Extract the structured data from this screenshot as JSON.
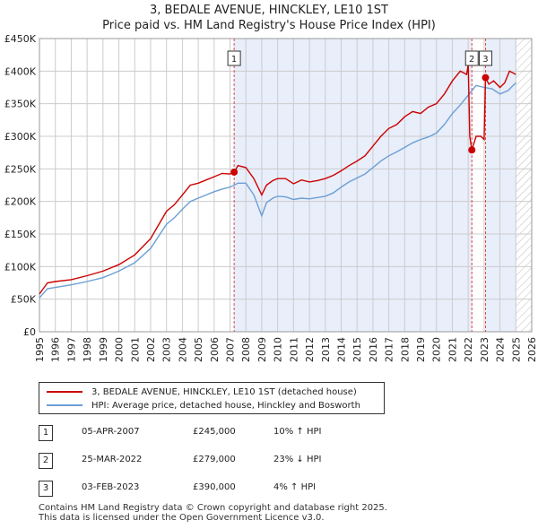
{
  "title": {
    "line1": "3, BEDALE AVENUE, HINCKLEY, LE10 1ST",
    "line2": "Price paid vs. HM Land Registry's House Price Index (HPI)"
  },
  "colors": {
    "price_line": "#cc0000",
    "hpi_line": "#6b9fd4",
    "shade": "#e8eefa",
    "grid": "#cccccc",
    "marker_line": "#dd4444"
  },
  "legend": {
    "price_label": "3, BEDALE AVENUE, HINCKLEY, LE10 1ST (detached house)",
    "hpi_label": "HPI: Average price, detached house, Hinckley and Bosworth"
  },
  "transactions": [
    {
      "num": "1",
      "date": "05-APR-2007",
      "price": "£245,000",
      "hpi": "10% ↑ HPI"
    },
    {
      "num": "2",
      "date": "25-MAR-2022",
      "price": "£279,000",
      "hpi": "23% ↓ HPI"
    },
    {
      "num": "3",
      "date": "03-FEB-2023",
      "price": "£390,000",
      "hpi": "4% ↑ HPI"
    }
  ],
  "footer": {
    "line1": "Contains HM Land Registry data © Crown copyright and database right 2025.",
    "line2": "This data is licensed under the Open Government Licence v3.0."
  },
  "chart_data": {
    "type": "line",
    "title": "Price paid vs. HM Land Registry's House Price Index (HPI)",
    "xlim": [
      1995,
      2026
    ],
    "ylim": [
      0,
      450000
    ],
    "x_ticks": [
      1995,
      1996,
      1997,
      1998,
      1999,
      2000,
      2001,
      2002,
      2003,
      2004,
      2005,
      2006,
      2007,
      2008,
      2009,
      2010,
      2011,
      2012,
      2013,
      2014,
      2015,
      2016,
      2017,
      2018,
      2019,
      2020,
      2021,
      2022,
      2023,
      2024,
      2025,
      2026
    ],
    "y_ticks": [
      0,
      50000,
      100000,
      150000,
      200000,
      250000,
      300000,
      350000,
      400000,
      450000
    ],
    "y_tick_labels": [
      "£0",
      "£50K",
      "£100K",
      "£150K",
      "£200K",
      "£250K",
      "£300K",
      "£350K",
      "£400K",
      "£450K"
    ],
    "shaded_ranges": [
      [
        2007.26,
        2022.23
      ],
      [
        2023.09,
        2025.0
      ]
    ],
    "hatched_range": [
      2025.0,
      2026.0
    ],
    "sale_markers": [
      {
        "label": "1",
        "x": 2007.26,
        "y": 245000
      },
      {
        "label": "2",
        "x": 2022.23,
        "y": 279000
      },
      {
        "label": "3",
        "x": 2023.09,
        "y": 390000
      }
    ],
    "series": [
      {
        "name": "3, BEDALE AVENUE, HINCKLEY, LE10 1ST (detached house)",
        "x": [
          1995,
          1995.5,
          1996,
          1997,
          1998,
          1999,
          2000,
          2001,
          2002,
          2003,
          2003.5,
          2004,
          2004.5,
          2005,
          2005.5,
          2006,
          2006.5,
          2007,
          2007.26,
          2007.5,
          2008,
          2008.5,
          2009,
          2009.3,
          2009.7,
          2010,
          2010.5,
          2011,
          2011.5,
          2012,
          2012.5,
          2013,
          2013.5,
          2014,
          2014.5,
          2015,
          2015.5,
          2016,
          2016.5,
          2017,
          2017.5,
          2018,
          2018.5,
          2019,
          2019.5,
          2020,
          2020.5,
          2021,
          2021.5,
          2021.9,
          2022.0,
          2022.1,
          2022.23,
          2022.5,
          2022.8,
          2023.0,
          2023.09,
          2023.3,
          2023.6,
          2024,
          2024.3,
          2024.6,
          2025
        ],
        "values": [
          58000,
          75000,
          77000,
          80000,
          86000,
          93000,
          103000,
          118000,
          143000,
          185000,
          195000,
          210000,
          225000,
          228000,
          233000,
          238000,
          243000,
          242000,
          245000,
          255000,
          252000,
          235000,
          210000,
          225000,
          232000,
          235000,
          235000,
          227000,
          233000,
          230000,
          232000,
          235000,
          240000,
          247000,
          255000,
          262000,
          270000,
          285000,
          300000,
          312000,
          318000,
          330000,
          338000,
          335000,
          345000,
          350000,
          365000,
          385000,
          400000,
          395000,
          410000,
          300000,
          279000,
          300000,
          300000,
          295000,
          390000,
          380000,
          385000,
          375000,
          382000,
          400000,
          395000
        ]
      },
      {
        "name": "HPI: Average price, detached house, Hinckley and Bosworth",
        "x": [
          1995,
          1995.5,
          1996,
          1997,
          1998,
          1999,
          2000,
          2001,
          2002,
          2003,
          2003.5,
          2004,
          2004.5,
          2005,
          2005.5,
          2006,
          2006.5,
          2007,
          2007.5,
          2008,
          2008.5,
          2009,
          2009.3,
          2009.7,
          2010,
          2010.5,
          2011,
          2011.5,
          2012,
          2012.5,
          2013,
          2013.5,
          2014,
          2014.5,
          2015,
          2015.5,
          2016,
          2016.5,
          2017,
          2017.5,
          2018,
          2018.5,
          2019,
          2019.5,
          2020,
          2020.5,
          2021,
          2021.5,
          2022,
          2022.5,
          2023,
          2023.5,
          2024,
          2024.5,
          2025
        ],
        "values": [
          52000,
          66000,
          68000,
          72000,
          77000,
          83000,
          93000,
          106000,
          128000,
          165000,
          175000,
          188000,
          200000,
          205000,
          210000,
          215000,
          219000,
          222000,
          228000,
          228000,
          210000,
          178000,
          198000,
          205000,
          208000,
          207000,
          203000,
          205000,
          204000,
          206000,
          208000,
          213000,
          222000,
          230000,
          236000,
          242000,
          252000,
          262000,
          270000,
          276000,
          283000,
          290000,
          295000,
          299000,
          305000,
          318000,
          335000,
          348000,
          363000,
          378000,
          375000,
          373000,
          365000,
          370000,
          382000
        ]
      }
    ]
  }
}
